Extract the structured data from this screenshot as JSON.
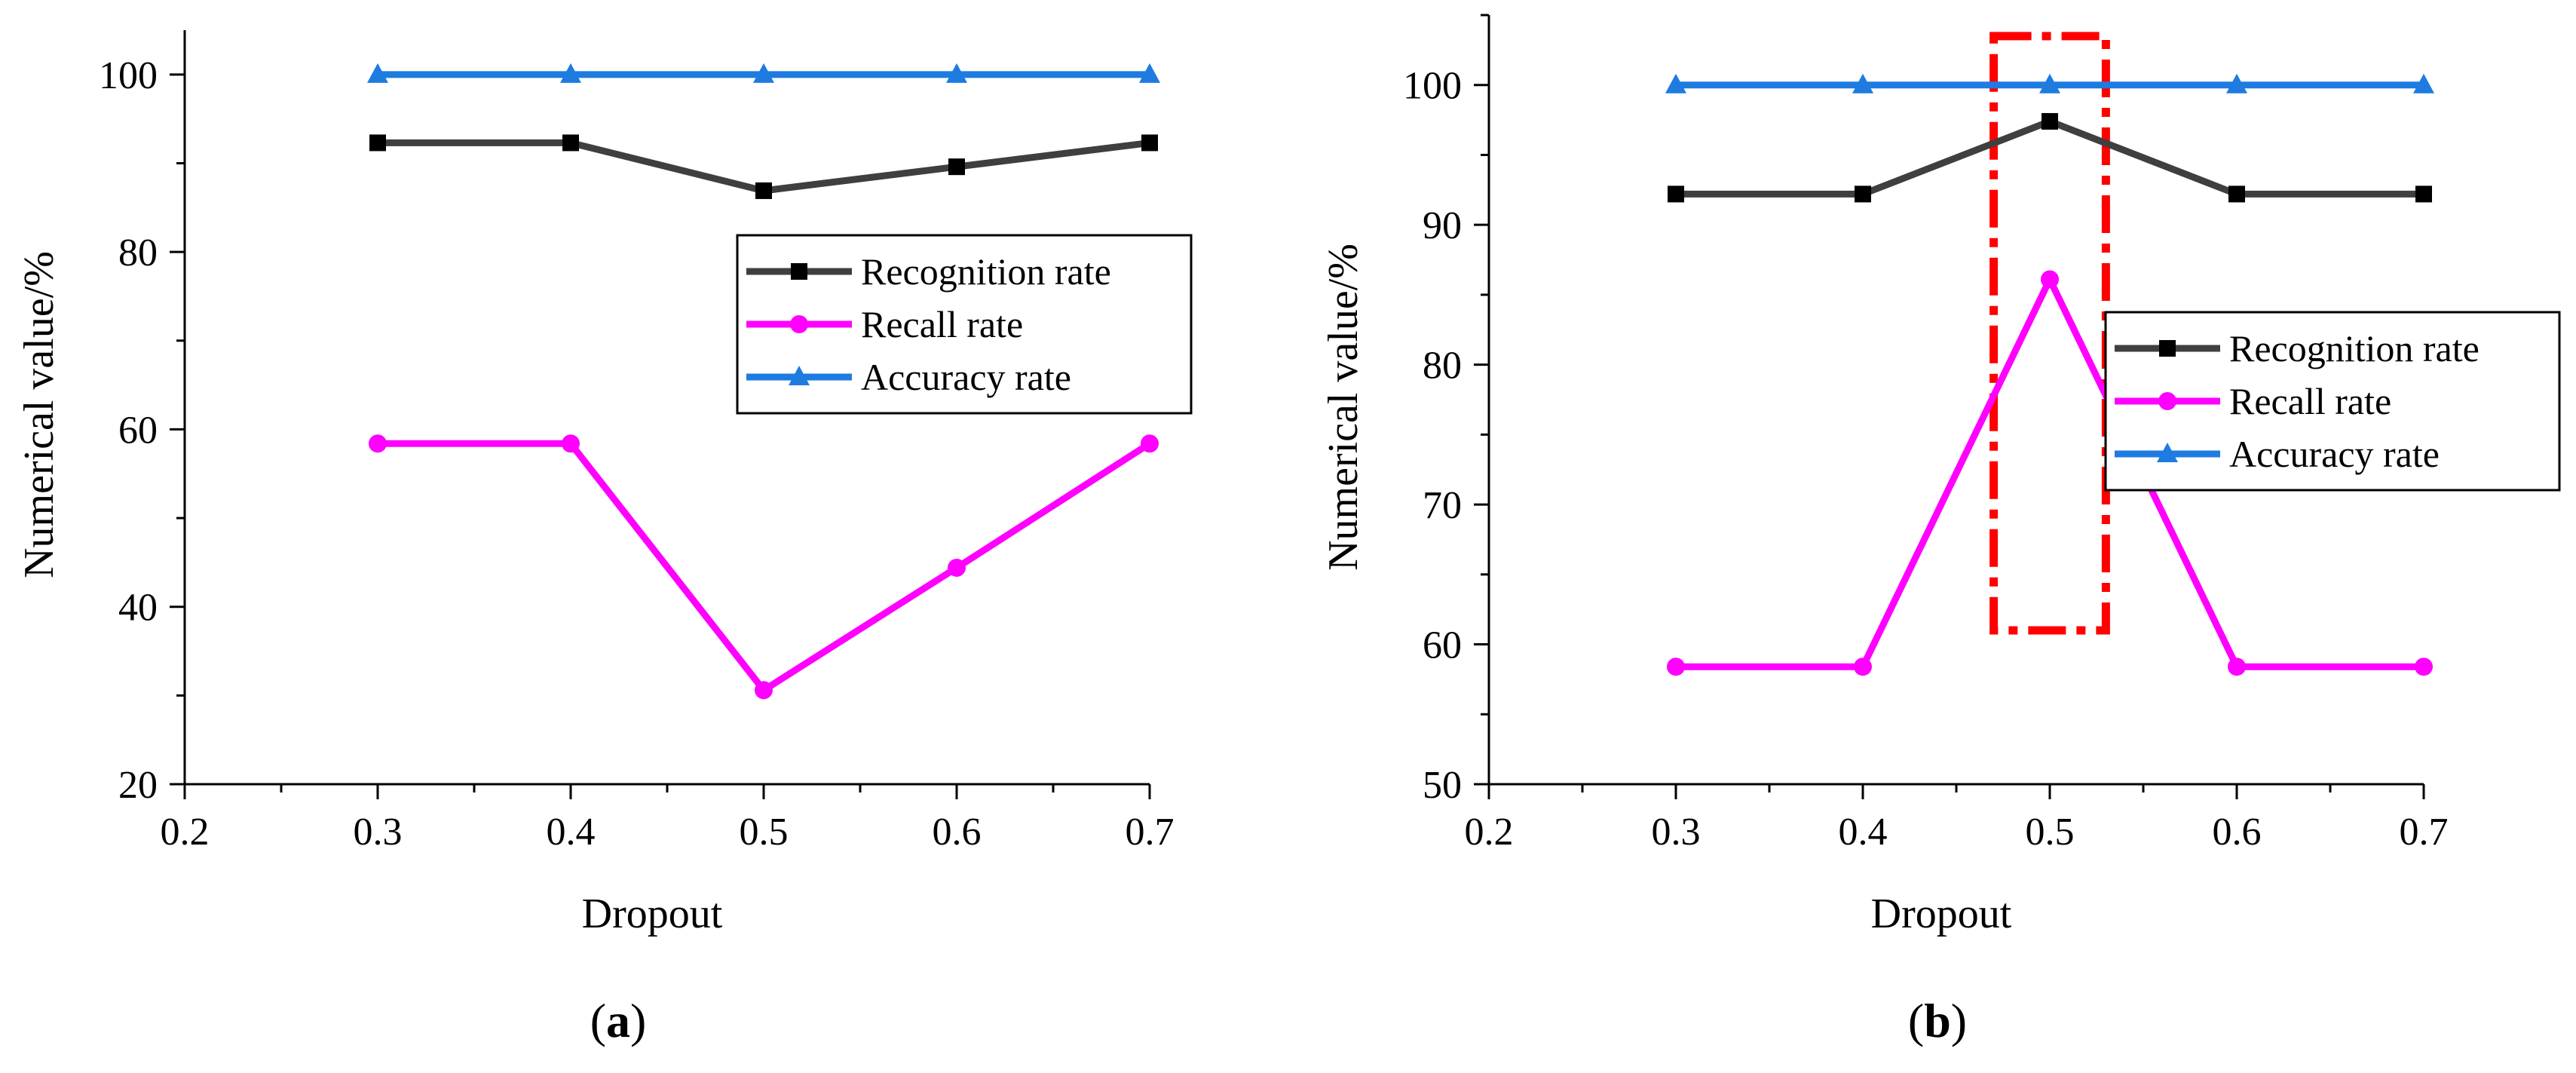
{
  "colors": {
    "recognition": "#3f3f3f",
    "recognition_marker": "#000000",
    "recall": "#ff00ff",
    "accuracy": "#1e7be0",
    "highlight": "#ff0000",
    "axis": "#000000"
  },
  "chart_data": [
    {
      "type": "line",
      "panel_label": {
        "open": "(",
        "letter": "a",
        "close": ")"
      },
      "xlabel": "Dropout",
      "ylabel": "Numerical value/%",
      "xlim": [
        0.2,
        0.7
      ],
      "ylim": [
        20,
        105
      ],
      "xticks": [
        0.2,
        0.3,
        0.4,
        0.5,
        0.6,
        0.7
      ],
      "xtick_labels": [
        "0.2",
        "0.3",
        "0.4",
        "0.5",
        "0.6",
        "0.7"
      ],
      "yticks": [
        20,
        40,
        60,
        80,
        100
      ],
      "ytick_labels": [
        "20",
        "40",
        "60",
        "80",
        "100"
      ],
      "legend_position": "right-middle",
      "x": [
        0.3,
        0.4,
        0.5,
        0.6,
        0.7
      ],
      "series": [
        {
          "key": "recognition",
          "name": "Recognition rate",
          "marker": "square",
          "values": [
            92.3,
            92.3,
            86.9,
            89.6,
            92.3
          ]
        },
        {
          "key": "recall",
          "name": "Recall rate",
          "marker": "circle",
          "values": [
            58.4,
            58.4,
            30.6,
            44.4,
            58.4
          ]
        },
        {
          "key": "accuracy",
          "name": "Accuracy rate",
          "marker": "triangle",
          "values": [
            100,
            100,
            100,
            100,
            100
          ]
        }
      ]
    },
    {
      "type": "line",
      "panel_label": {
        "open": "(",
        "letter": "b",
        "close": ")"
      },
      "xlabel": "Dropout",
      "ylabel": "Numerical value/%",
      "xlim": [
        0.2,
        0.7
      ],
      "ylim": [
        50,
        105
      ],
      "xticks": [
        0.2,
        0.3,
        0.4,
        0.5,
        0.6,
        0.7
      ],
      "xtick_labels": [
        "0.2",
        "0.3",
        "0.4",
        "0.5",
        "0.6",
        "0.7"
      ],
      "yticks": [
        50,
        60,
        70,
        80,
        90,
        100
      ],
      "ytick_labels": [
        "50",
        "60",
        "70",
        "80",
        "90",
        "100"
      ],
      "legend_position": "right-middle",
      "x": [
        0.3,
        0.4,
        0.5,
        0.6,
        0.7
      ],
      "series": [
        {
          "key": "recognition",
          "name": "Recognition rate",
          "marker": "square",
          "values": [
            92.2,
            92.2,
            97.4,
            92.2,
            92.2
          ]
        },
        {
          "key": "recall",
          "name": "Recall rate",
          "marker": "circle",
          "values": [
            58.4,
            58.4,
            86.1,
            58.4,
            58.4
          ]
        },
        {
          "key": "accuracy",
          "name": "Accuracy rate",
          "marker": "triangle",
          "values": [
            100,
            100,
            100,
            100,
            100
          ]
        }
      ],
      "annotation": {
        "type": "dash-dot-box",
        "x_range": [
          0.47,
          0.53
        ],
        "y_range": [
          61,
          103.5
        ]
      }
    }
  ]
}
